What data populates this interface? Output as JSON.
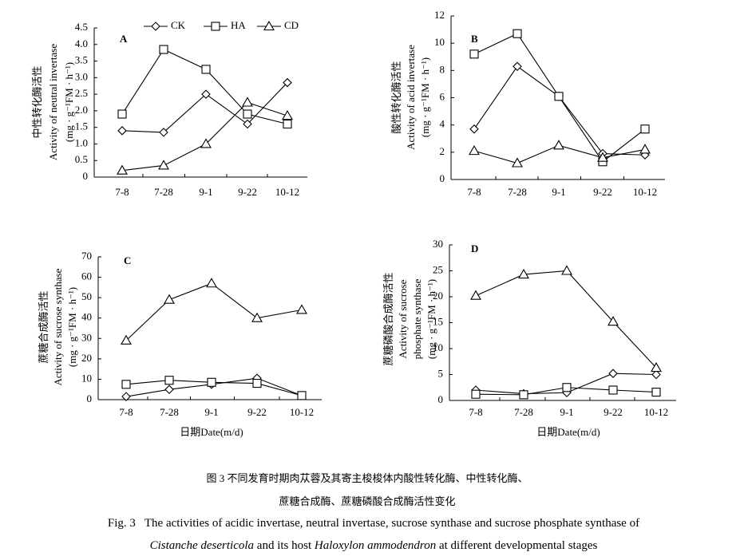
{
  "chart_data": [
    {
      "type": "line",
      "label": "A",
      "ylabel": [
        "中性转化酶活性",
        "Activity of neutral invertase",
        "(mg · g⁻¹FM · h⁻¹)"
      ],
      "categories": [
        "7-8",
        "7-28",
        "9-1",
        "9-22",
        "10-12"
      ],
      "ylim": [
        0,
        4.5
      ],
      "yticks": [
        0,
        0.5,
        {
          "value": 1,
          "label": "1.0"
        },
        1.5,
        {
          "value": 2,
          "label": "2.0"
        },
        2.5,
        {
          "value": 3,
          "label": "3.0"
        },
        3.5,
        {
          "value": 4,
          "label": "4.0"
        },
        4.5
      ],
      "series": [
        {
          "name": "CK",
          "marker": "diamond",
          "color": "#000000",
          "values": [
            1.4,
            1.35,
            2.5,
            1.6,
            2.85
          ]
        },
        {
          "name": "HA",
          "marker": "square",
          "color": "#000000",
          "values": [
            1.9,
            3.85,
            3.25,
            1.9,
            1.6
          ]
        },
        {
          "name": "CD",
          "marker": "triangle",
          "color": "#000000",
          "values": [
            0.2,
            0.35,
            1.0,
            2.25,
            1.85
          ]
        }
      ]
    },
    {
      "type": "line",
      "label": "B",
      "ylabel": [
        "酸性转化酶活性",
        "Activity of acid invertase",
        "(mg · g⁻¹FM · h⁻¹)"
      ],
      "categories": [
        "7-8",
        "7-28",
        "9-1",
        "9-22",
        "10-12"
      ],
      "ylim": [
        0,
        12
      ],
      "yticks": [
        0,
        2,
        4,
        6,
        8,
        10,
        12
      ],
      "series": [
        {
          "marker": "diamond",
          "color": "#000000",
          "values": [
            3.7,
            8.3,
            6.1,
            1.9,
            1.8
          ]
        },
        {
          "marker": "square",
          "color": "#000000",
          "values": [
            9.2,
            10.7,
            6.1,
            1.3,
            3.7
          ]
        },
        {
          "marker": "triangle",
          "color": "#000000",
          "values": [
            2.1,
            1.2,
            2.5,
            1.6,
            2.2
          ]
        }
      ]
    },
    {
      "type": "line",
      "label": "C",
      "ylabel": [
        "蔗糖合成酶活性",
        "Activity of sucrose synthase",
        "(mg · g⁻¹FM · h⁻¹)"
      ],
      "xlabel": "日期Date(m/d)",
      "categories": [
        "7-8",
        "7-28",
        "9-1",
        "9-22",
        "10-12"
      ],
      "ylim": [
        0,
        70
      ],
      "yticks": [
        0,
        10,
        20,
        30,
        40,
        50,
        60,
        70
      ],
      "series": [
        {
          "marker": "diamond",
          "color": "#000000",
          "values": [
            1.5,
            5,
            7.5,
            10.5,
            2
          ]
        },
        {
          "marker": "square",
          "color": "#000000",
          "values": [
            7.5,
            9.5,
            8.5,
            8,
            2
          ]
        },
        {
          "marker": "triangle",
          "color": "#000000",
          "values": [
            29,
            49,
            57,
            40,
            44
          ]
        }
      ]
    },
    {
      "type": "line",
      "label": "D",
      "ylabel": [
        "蔗糖磷酸合成酶活性",
        "Activity of sucrose",
        "phosphate synthase",
        "(mg · g⁻¹FM · h⁻¹)"
      ],
      "xlabel": "日期Date(m/d)",
      "categories": [
        "7-8",
        "7-28",
        "9-1",
        "9-22",
        "10-12"
      ],
      "ylim": [
        0,
        30
      ],
      "yticks": [
        0,
        5,
        10,
        15,
        20,
        25,
        30
      ],
      "series": [
        {
          "marker": "diamond",
          "color": "#000000",
          "values": [
            2,
            1.3,
            1.5,
            5.2,
            5
          ]
        },
        {
          "marker": "square",
          "color": "#000000",
          "values": [
            1.2,
            1.1,
            2.5,
            2,
            1.6
          ]
        },
        {
          "marker": "triangle",
          "color": "#000000",
          "values": [
            20.2,
            24.3,
            25,
            15.2,
            6.3
          ]
        }
      ]
    }
  ],
  "caption": {
    "zh": [
      "图 3   不同发育时期肉苁蓉及其寄主梭梭体内酸性转化酶、中性转化酶、",
      "蔗糖合成酶、蔗糖磷酸合成酶活性变化"
    ],
    "en": [
      [
        {
          "text": "Fig. 3   The activities of acidic invertase, neutral invertase, sucrose synthase and sucrose phosphate synthase of",
          "italic": false
        }
      ],
      [
        {
          "text": "Cistanche deserticola",
          "italic": true
        },
        {
          "text": " and its host ",
          "italic": false
        },
        {
          "text": "Haloxylon ammodendron",
          "italic": true
        },
        {
          "text": " at different developmental stages",
          "italic": false
        }
      ]
    ]
  }
}
